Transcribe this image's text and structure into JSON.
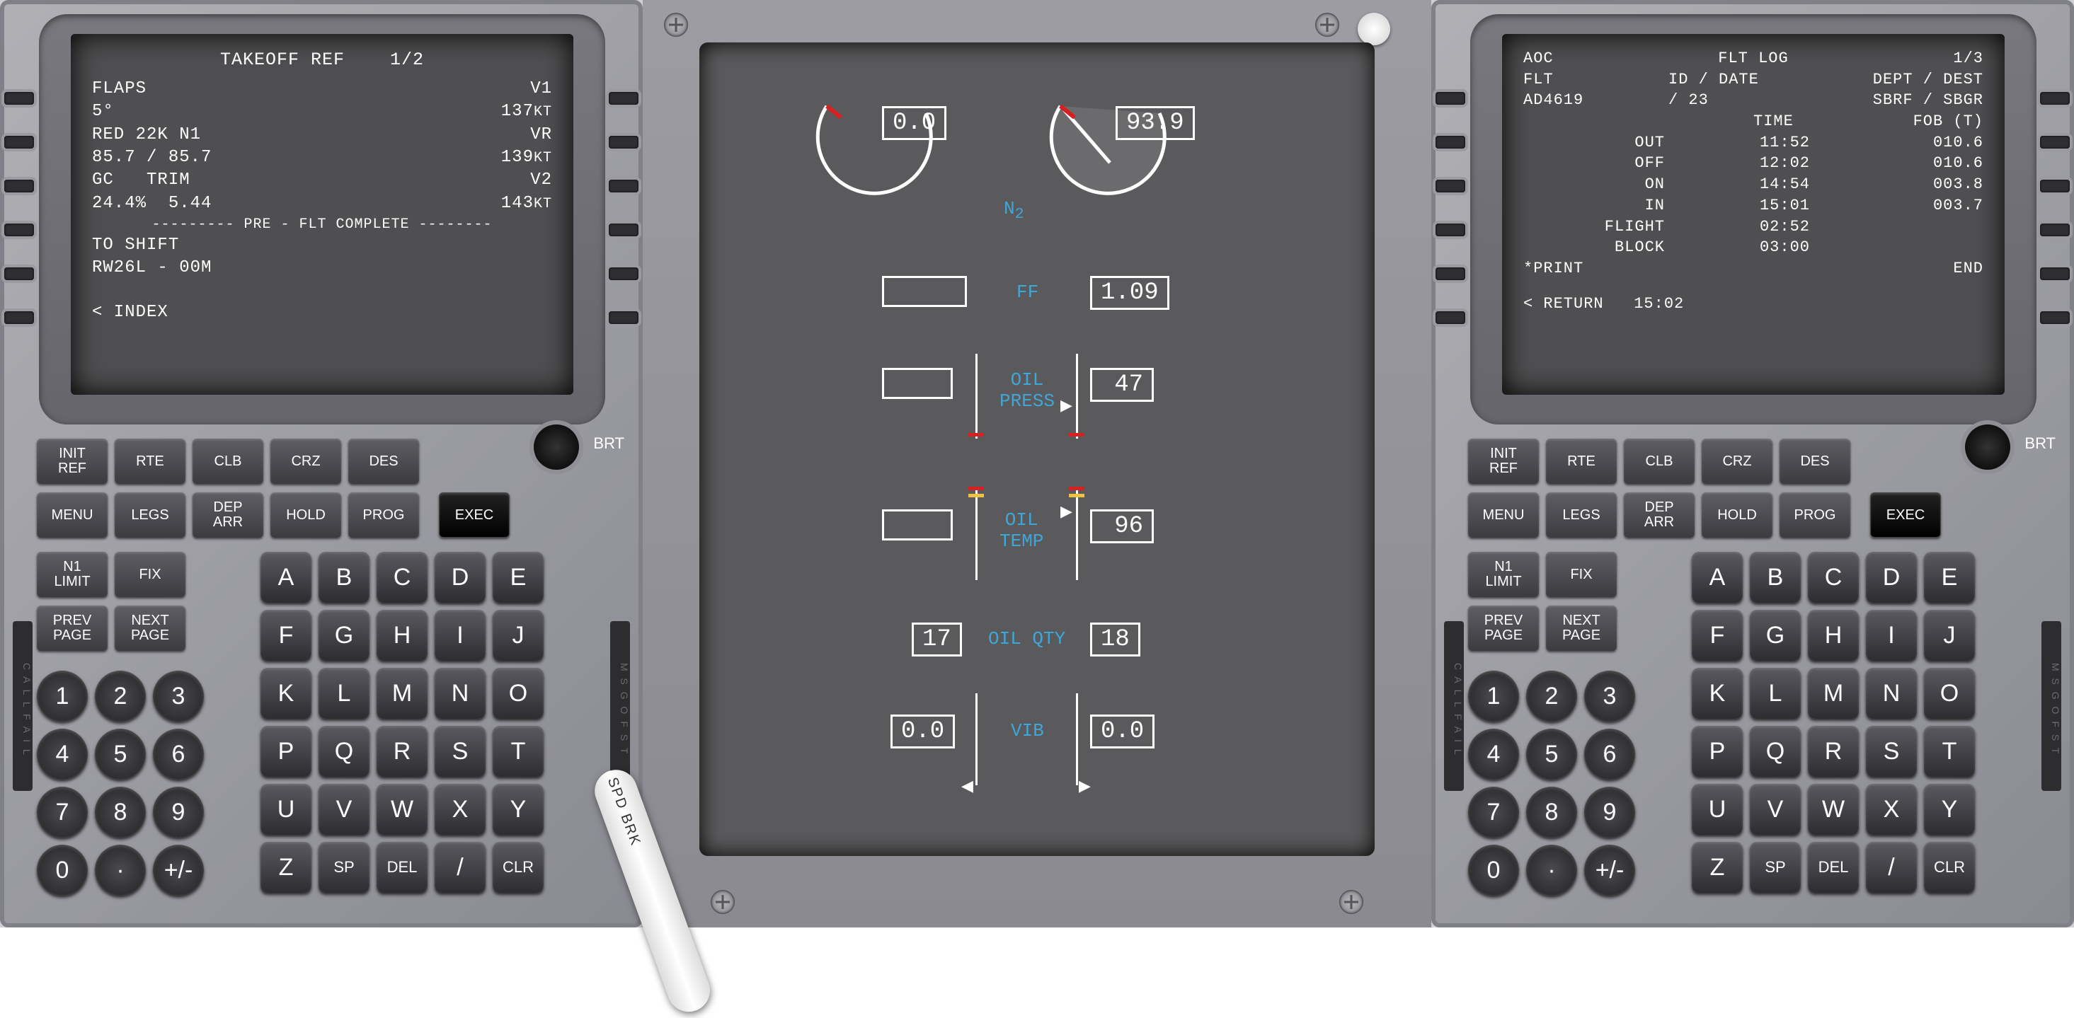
{
  "cdu_left": {
    "title": "TAKEOFF REF",
    "page": "1/2",
    "flaps_label": "FLAPS",
    "flaps_val": "5°",
    "v1_label": "V1",
    "v1": "137",
    "red_label": "RED 22K N1",
    "red_val": "85.7 / 85.7",
    "vr_label": "VR",
    "vr": "139",
    "gc_label": "GC   TRIM",
    "gc_val": "24.4%  5.44",
    "v2_label": "V2",
    "v2": "143",
    "kt": "KT",
    "preflt": "--------- PRE - FLT  COMPLETE --------",
    "toshift": "TO SHIFT",
    "rwy": "RW26L  - 00M",
    "index": "< INDEX"
  },
  "cdu_right": {
    "title_l": "AOC",
    "title_c": "FLT LOG",
    "page": "1/3",
    "flt_label": "FLT",
    "flt": "AD4619",
    "iddate_label": "ID / DATE",
    "iddate": "/ 23",
    "dept_label": "DEPT / DEST",
    "dept": "SBRF / SBGR",
    "time_h": "TIME",
    "fob_h": "FOB (T)",
    "rows": [
      {
        "l": "OUT",
        "t": "11:52",
        "f": "010.6"
      },
      {
        "l": "OFF",
        "t": "12:02",
        "f": "010.6"
      },
      {
        "l": "ON",
        "t": "14:54",
        "f": "003.8"
      },
      {
        "l": "IN",
        "t": "15:01",
        "f": "003.7"
      },
      {
        "l": "FLIGHT",
        "t": "02:52",
        "f": ""
      },
      {
        "l": "BLOCK",
        "t": "03:00",
        "f": ""
      }
    ],
    "print": "*PRINT",
    "end": "END",
    "return": "< RETURN",
    "ret_time": "15:02"
  },
  "cdu_keys": {
    "row1": [
      "INIT\nREF",
      "RTE",
      "CLB",
      "CRZ",
      "DES"
    ],
    "row2": [
      "MENU",
      "LEGS",
      "DEP\nARR",
      "HOLD",
      "PROG"
    ],
    "exec": "EXEC",
    "row3": [
      "N1\nLIMIT",
      "FIX"
    ],
    "row4": [
      "PREV\nPAGE",
      "NEXT\nPAGE"
    ],
    "nums": [
      [
        "1",
        "2",
        "3"
      ],
      [
        "4",
        "5",
        "6"
      ],
      [
        "7",
        "8",
        "9"
      ],
      [
        "0",
        "·",
        "+/-"
      ]
    ],
    "alpha": [
      [
        "A",
        "B",
        "C",
        "D",
        "E"
      ],
      [
        "F",
        "G",
        "H",
        "I",
        "J"
      ],
      [
        "K",
        "L",
        "M",
        "N",
        "O"
      ],
      [
        "P",
        "Q",
        "R",
        "S",
        "T"
      ],
      [
        "U",
        "V",
        "W",
        "X",
        "Y"
      ],
      [
        "Z",
        "SP",
        "DEL",
        "/",
        "CLR"
      ]
    ],
    "brt": "BRT",
    "call": "C A L L   F A I L",
    "msg": "M S G   O F S T"
  },
  "engine": {
    "n2": {
      "label": "N",
      "sub": "2",
      "l": "0.0",
      "r": "93.9"
    },
    "ff": {
      "label": "FF",
      "l": "",
      "r": "1.09"
    },
    "oilpress": {
      "label": "OIL\nPRESS",
      "l": "",
      "r": "47"
    },
    "oiltemp": {
      "label": "OIL\nTEMP",
      "l": "",
      "r": "96"
    },
    "oilqty": {
      "label": "OIL QTY",
      "l": "17",
      "r": "18"
    },
    "vib": {
      "label": "VIB",
      "l": "0.0",
      "r": "0.0"
    },
    "colors": {
      "label": "#3fa7d8",
      "fg": "#ffffff",
      "red": "#d82020",
      "yellow": "#f0c040",
      "bg": "#5a5a5c"
    }
  },
  "spdbrk": "SPD BRK"
}
